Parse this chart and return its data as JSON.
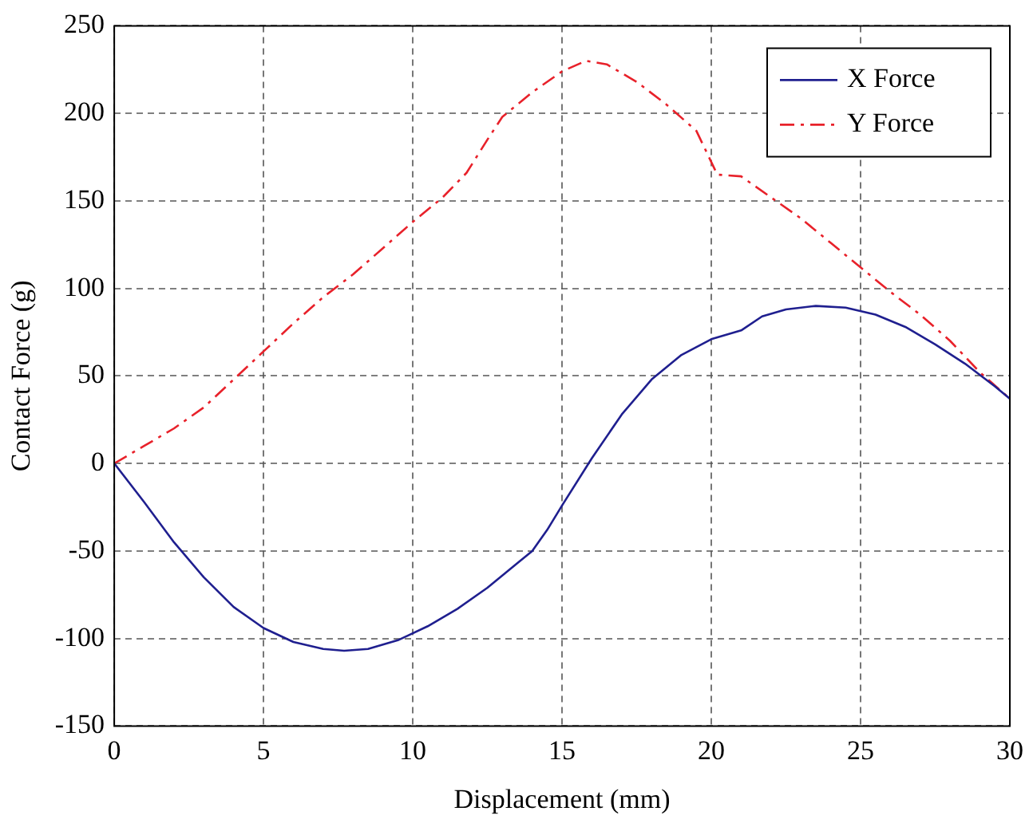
{
  "chart_data": {
    "type": "line",
    "xlabel": "Displacement (mm)",
    "ylabel": "Contact Force (g)",
    "xlim": [
      0,
      30
    ],
    "xticks": [
      0,
      5,
      10,
      15,
      20,
      25,
      30
    ],
    "ylim": [
      -150,
      250
    ],
    "yticks": [
      -150,
      -100,
      -50,
      0,
      50,
      100,
      150,
      200,
      250
    ],
    "grid": true,
    "legend": "top right",
    "marker": "none",
    "series": [
      {
        "name": "X Force",
        "color": "#1f1f8f",
        "line_style": "solid",
        "x": [
          0,
          1,
          2,
          3,
          4,
          5,
          6,
          7,
          7.7,
          8.5,
          9.5,
          10.5,
          11.5,
          12.5,
          13.5,
          14,
          14.5,
          15,
          16,
          17,
          18,
          19,
          20,
          21,
          21.7,
          22.5,
          23.5,
          24.5,
          25.5,
          26.5,
          27.5,
          28.5,
          29.5,
          30
        ],
        "values": [
          0,
          -22,
          -45,
          -65,
          -82,
          -94,
          -102,
          -106,
          -107,
          -106,
          -101,
          -93,
          -83,
          -71,
          -57,
          -50,
          -38,
          -24,
          3,
          28,
          48,
          62,
          71,
          76,
          84,
          88,
          90,
          89,
          85,
          78,
          68,
          57,
          44,
          37
        ]
      },
      {
        "name": "Y Force",
        "color": "#e8212a",
        "line_style": "dashdot",
        "x": [
          0,
          1,
          2,
          3,
          4,
          5,
          6,
          7,
          8,
          9,
          10,
          11,
          11.8,
          12.5,
          13,
          14,
          15,
          15.8,
          16.5,
          17.5,
          18.5,
          19.5,
          20.2,
          21,
          22,
          23,
          24,
          25,
          26,
          27,
          28,
          29,
          30
        ],
        "values": [
          0,
          10,
          20,
          32,
          48,
          64,
          80,
          95,
          108,
          123,
          138,
          152,
          166,
          185,
          198,
          212,
          224,
          230,
          228,
          218,
          205,
          190,
          165,
          164,
          152,
          140,
          126,
          112,
          98,
          85,
          70,
          52,
          37
        ]
      }
    ]
  }
}
